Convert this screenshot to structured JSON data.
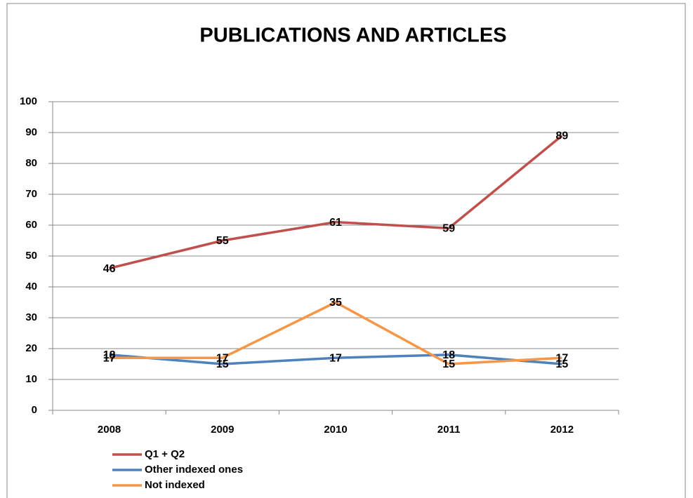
{
  "chart_data": {
    "type": "line",
    "title": "PUBLICATIONS AND ARTICLES",
    "categories": [
      "2008",
      "2009",
      "2010",
      "2011",
      "2012"
    ],
    "series": [
      {
        "name": "Q1 + Q2",
        "color": "#c0504d",
        "values": [
          46,
          55,
          61,
          59,
          89
        ]
      },
      {
        "name": "Other indexed ones",
        "color": "#4f81bd",
        "values": [
          18,
          15,
          17,
          18,
          15
        ]
      },
      {
        "name": "Not indexed",
        "color": "#f79646",
        "values": [
          17,
          17,
          35,
          15,
          17
        ]
      }
    ],
    "ylim": [
      0,
      100
    ],
    "yticks": [
      0,
      10,
      20,
      30,
      40,
      50,
      60,
      70,
      80,
      90,
      100
    ],
    "grid": true,
    "legend": "bottom-left",
    "data_labels": true
  }
}
